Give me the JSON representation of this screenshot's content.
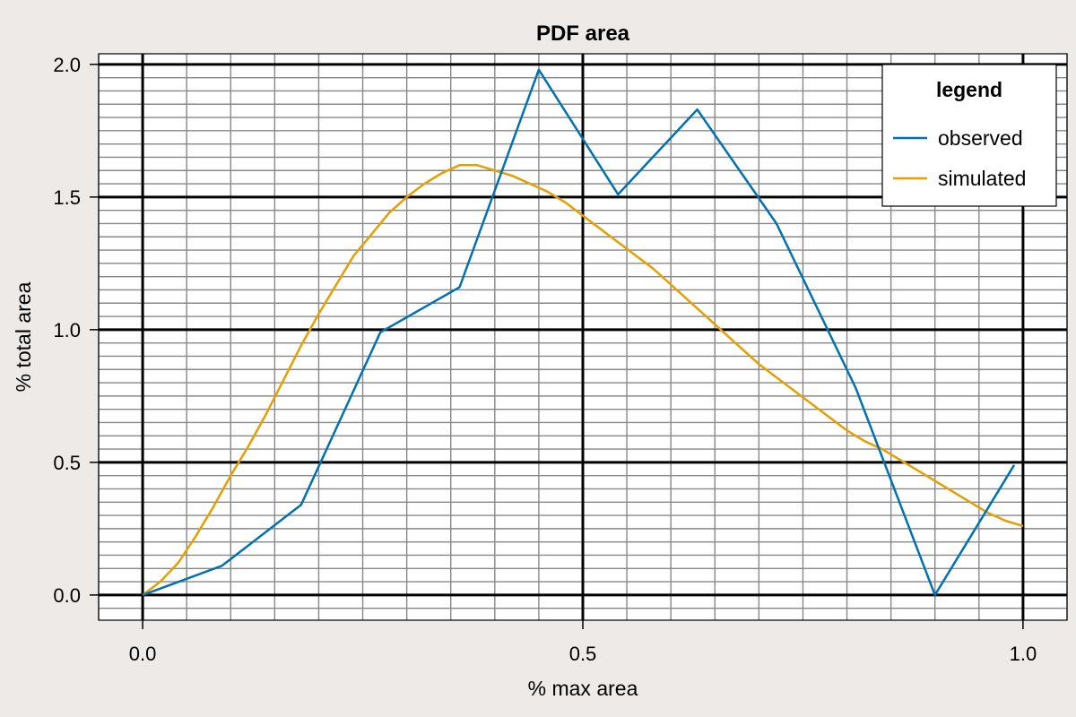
{
  "chart_data": {
    "type": "line",
    "title": "PDF area",
    "xlabel": "% max area",
    "ylabel": "% total area",
    "xlim": [
      -0.05,
      1.05
    ],
    "ylim": [
      -0.095,
      2.04
    ],
    "x_ticks": [
      0.0,
      0.5,
      1.0
    ],
    "x_tick_labels": [
      "0.0",
      "0.5",
      "1.0"
    ],
    "y_ticks": [
      0.0,
      0.5,
      1.0,
      1.5,
      2.0
    ],
    "y_tick_labels": [
      "0.0",
      "0.5",
      "1.0",
      "1.5",
      "2.0"
    ],
    "x_minor_step": 0.05,
    "y_minor_step": 0.05,
    "grid": true,
    "legend": {
      "title": "legend",
      "position": "top-right",
      "entries": [
        "observed",
        "simulated"
      ]
    },
    "series": [
      {
        "name": "observed",
        "color": "#0072b2",
        "x": [
          0.0,
          0.09,
          0.18,
          0.27,
          0.36,
          0.45,
          0.54,
          0.63,
          0.72,
          0.81,
          0.9,
          0.99
        ],
        "y": [
          0.0,
          0.11,
          0.34,
          0.99,
          1.16,
          1.98,
          1.51,
          1.83,
          1.4,
          0.78,
          0.0,
          0.49
        ]
      },
      {
        "name": "simulated",
        "color": "#e69f00",
        "x": [
          0.0,
          0.02,
          0.04,
          0.06,
          0.08,
          0.1,
          0.12,
          0.14,
          0.16,
          0.18,
          0.2,
          0.22,
          0.24,
          0.26,
          0.28,
          0.3,
          0.32,
          0.34,
          0.36,
          0.38,
          0.4,
          0.42,
          0.44,
          0.46,
          0.48,
          0.5,
          0.52,
          0.54,
          0.56,
          0.58,
          0.6,
          0.62,
          0.64,
          0.66,
          0.68,
          0.7,
          0.72,
          0.74,
          0.76,
          0.78,
          0.8,
          0.82,
          0.84,
          0.86,
          0.88,
          0.9,
          0.92,
          0.94,
          0.96,
          0.98,
          1.0
        ],
        "y": [
          0.0,
          0.05,
          0.12,
          0.22,
          0.33,
          0.45,
          0.56,
          0.68,
          0.81,
          0.94,
          1.06,
          1.17,
          1.28,
          1.36,
          1.44,
          1.5,
          1.55,
          1.59,
          1.62,
          1.62,
          1.6,
          1.58,
          1.55,
          1.52,
          1.48,
          1.43,
          1.38,
          1.33,
          1.28,
          1.23,
          1.17,
          1.11,
          1.05,
          0.99,
          0.93,
          0.87,
          0.82,
          0.77,
          0.72,
          0.67,
          0.62,
          0.58,
          0.55,
          0.51,
          0.47,
          0.43,
          0.39,
          0.35,
          0.31,
          0.28,
          0.26
        ]
      }
    ]
  }
}
